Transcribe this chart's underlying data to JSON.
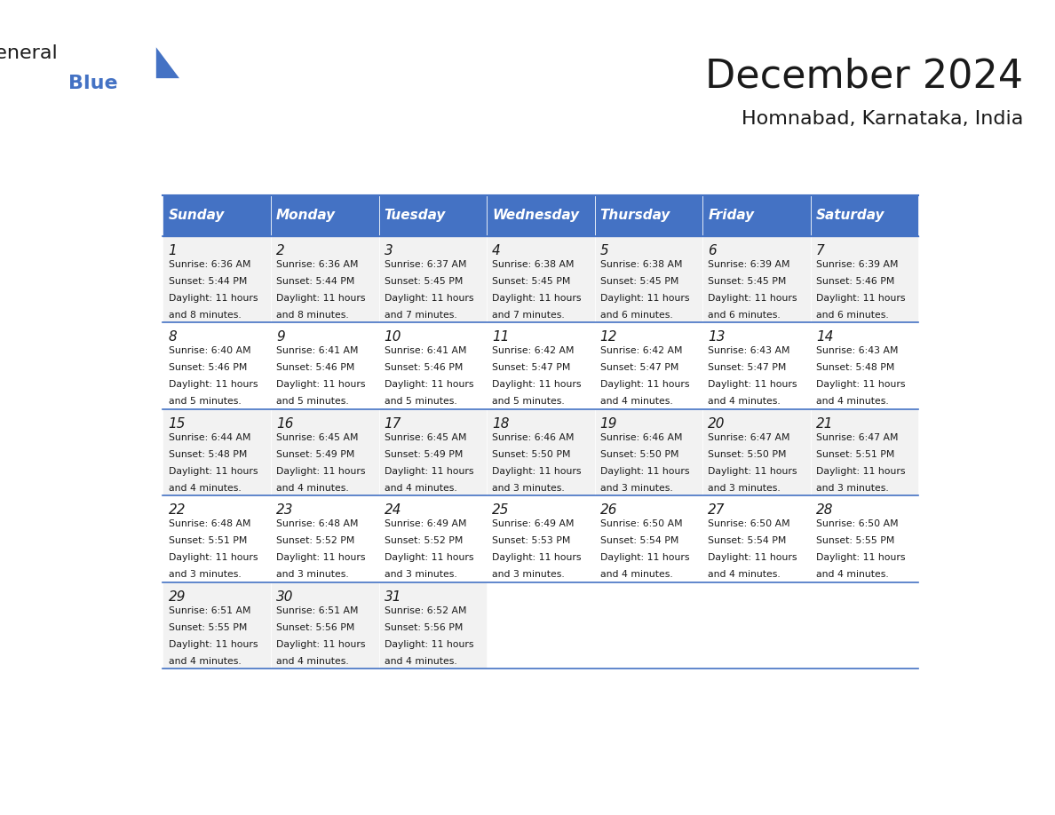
{
  "title": "December 2024",
  "subtitle": "Homnabad, Karnataka, India",
  "header_bg_color": "#4472C4",
  "header_text_color": "#FFFFFF",
  "cell_bg_color": "#FFFFFF",
  "alt_cell_bg_color": "#F2F2F2",
  "border_color": "#4472C4",
  "day_names": [
    "Sunday",
    "Monday",
    "Tuesday",
    "Wednesday",
    "Thursday",
    "Friday",
    "Saturday"
  ],
  "title_color": "#1a1a1a",
  "subtitle_color": "#1a1a1a",
  "text_color": "#1a1a1a",
  "days": [
    {
      "day": 1,
      "col": 0,
      "row": 0,
      "sunrise": "6:36 AM",
      "sunset": "5:44 PM",
      "daylight": "11 hours and 8 minutes."
    },
    {
      "day": 2,
      "col": 1,
      "row": 0,
      "sunrise": "6:36 AM",
      "sunset": "5:44 PM",
      "daylight": "11 hours and 8 minutes."
    },
    {
      "day": 3,
      "col": 2,
      "row": 0,
      "sunrise": "6:37 AM",
      "sunset": "5:45 PM",
      "daylight": "11 hours and 7 minutes."
    },
    {
      "day": 4,
      "col": 3,
      "row": 0,
      "sunrise": "6:38 AM",
      "sunset": "5:45 PM",
      "daylight": "11 hours and 7 minutes."
    },
    {
      "day": 5,
      "col": 4,
      "row": 0,
      "sunrise": "6:38 AM",
      "sunset": "5:45 PM",
      "daylight": "11 hours and 6 minutes."
    },
    {
      "day": 6,
      "col": 5,
      "row": 0,
      "sunrise": "6:39 AM",
      "sunset": "5:45 PM",
      "daylight": "11 hours and 6 minutes."
    },
    {
      "day": 7,
      "col": 6,
      "row": 0,
      "sunrise": "6:39 AM",
      "sunset": "5:46 PM",
      "daylight": "11 hours and 6 minutes."
    },
    {
      "day": 8,
      "col": 0,
      "row": 1,
      "sunrise": "6:40 AM",
      "sunset": "5:46 PM",
      "daylight": "11 hours and 5 minutes."
    },
    {
      "day": 9,
      "col": 1,
      "row": 1,
      "sunrise": "6:41 AM",
      "sunset": "5:46 PM",
      "daylight": "11 hours and 5 minutes."
    },
    {
      "day": 10,
      "col": 2,
      "row": 1,
      "sunrise": "6:41 AM",
      "sunset": "5:46 PM",
      "daylight": "11 hours and 5 minutes."
    },
    {
      "day": 11,
      "col": 3,
      "row": 1,
      "sunrise": "6:42 AM",
      "sunset": "5:47 PM",
      "daylight": "11 hours and 5 minutes."
    },
    {
      "day": 12,
      "col": 4,
      "row": 1,
      "sunrise": "6:42 AM",
      "sunset": "5:47 PM",
      "daylight": "11 hours and 4 minutes."
    },
    {
      "day": 13,
      "col": 5,
      "row": 1,
      "sunrise": "6:43 AM",
      "sunset": "5:47 PM",
      "daylight": "11 hours and 4 minutes."
    },
    {
      "day": 14,
      "col": 6,
      "row": 1,
      "sunrise": "6:43 AM",
      "sunset": "5:48 PM",
      "daylight": "11 hours and 4 minutes."
    },
    {
      "day": 15,
      "col": 0,
      "row": 2,
      "sunrise": "6:44 AM",
      "sunset": "5:48 PM",
      "daylight": "11 hours and 4 minutes."
    },
    {
      "day": 16,
      "col": 1,
      "row": 2,
      "sunrise": "6:45 AM",
      "sunset": "5:49 PM",
      "daylight": "11 hours and 4 minutes."
    },
    {
      "day": 17,
      "col": 2,
      "row": 2,
      "sunrise": "6:45 AM",
      "sunset": "5:49 PM",
      "daylight": "11 hours and 4 minutes."
    },
    {
      "day": 18,
      "col": 3,
      "row": 2,
      "sunrise": "6:46 AM",
      "sunset": "5:50 PM",
      "daylight": "11 hours and 3 minutes."
    },
    {
      "day": 19,
      "col": 4,
      "row": 2,
      "sunrise": "6:46 AM",
      "sunset": "5:50 PM",
      "daylight": "11 hours and 3 minutes."
    },
    {
      "day": 20,
      "col": 5,
      "row": 2,
      "sunrise": "6:47 AM",
      "sunset": "5:50 PM",
      "daylight": "11 hours and 3 minutes."
    },
    {
      "day": 21,
      "col": 6,
      "row": 2,
      "sunrise": "6:47 AM",
      "sunset": "5:51 PM",
      "daylight": "11 hours and 3 minutes."
    },
    {
      "day": 22,
      "col": 0,
      "row": 3,
      "sunrise": "6:48 AM",
      "sunset": "5:51 PM",
      "daylight": "11 hours and 3 minutes."
    },
    {
      "day": 23,
      "col": 1,
      "row": 3,
      "sunrise": "6:48 AM",
      "sunset": "5:52 PM",
      "daylight": "11 hours and 3 minutes."
    },
    {
      "day": 24,
      "col": 2,
      "row": 3,
      "sunrise": "6:49 AM",
      "sunset": "5:52 PM",
      "daylight": "11 hours and 3 minutes."
    },
    {
      "day": 25,
      "col": 3,
      "row": 3,
      "sunrise": "6:49 AM",
      "sunset": "5:53 PM",
      "daylight": "11 hours and 3 minutes."
    },
    {
      "day": 26,
      "col": 4,
      "row": 3,
      "sunrise": "6:50 AM",
      "sunset": "5:54 PM",
      "daylight": "11 hours and 4 minutes."
    },
    {
      "day": 27,
      "col": 5,
      "row": 3,
      "sunrise": "6:50 AM",
      "sunset": "5:54 PM",
      "daylight": "11 hours and 4 minutes."
    },
    {
      "day": 28,
      "col": 6,
      "row": 3,
      "sunrise": "6:50 AM",
      "sunset": "5:55 PM",
      "daylight": "11 hours and 4 minutes."
    },
    {
      "day": 29,
      "col": 0,
      "row": 4,
      "sunrise": "6:51 AM",
      "sunset": "5:55 PM",
      "daylight": "11 hours and 4 minutes."
    },
    {
      "day": 30,
      "col": 1,
      "row": 4,
      "sunrise": "6:51 AM",
      "sunset": "5:56 PM",
      "daylight": "11 hours and 4 minutes."
    },
    {
      "day": 31,
      "col": 2,
      "row": 4,
      "sunrise": "6:52 AM",
      "sunset": "5:56 PM",
      "daylight": "11 hours and 4 minutes."
    }
  ],
  "num_rows": 5,
  "logo_general_color": "#1a1a1a",
  "logo_blue_color": "#4472C4"
}
